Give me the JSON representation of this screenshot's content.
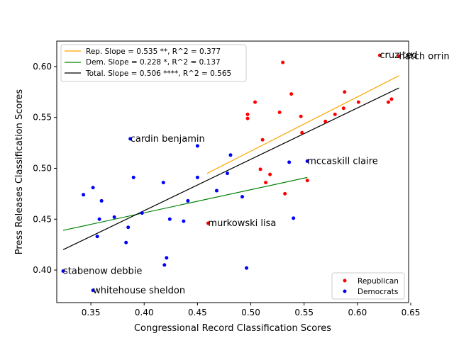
{
  "chart_data": {
    "type": "scatter",
    "xlabel": "Congressional Record Classification Scores",
    "ylabel": "Press Releases Classification Scores",
    "xlim": [
      0.318,
      0.648
    ],
    "ylim": [
      0.368,
      0.625
    ],
    "xticks": [
      {
        "value": 0.35,
        "label": "0.35"
      },
      {
        "value": 0.4,
        "label": "0.40"
      },
      {
        "value": 0.45,
        "label": "0.45"
      },
      {
        "value": 0.5,
        "label": "0.50"
      },
      {
        "value": 0.55,
        "label": "0.55"
      },
      {
        "value": 0.6,
        "label": "0.60"
      },
      {
        "value": 0.65,
        "label": "0.65"
      }
    ],
    "yticks": [
      {
        "value": 0.4,
        "label": "0.40"
      },
      {
        "value": 0.45,
        "label": "0.45"
      },
      {
        "value": 0.5,
        "label": "0.50"
      },
      {
        "value": 0.55,
        "label": "0.55"
      },
      {
        "value": 0.6,
        "label": "0.60"
      }
    ],
    "grid": false,
    "series": [
      {
        "name": "Republican",
        "color": "#ff0000",
        "points": [
          [
            0.46,
            0.446
          ],
          [
            0.497,
            0.553
          ],
          [
            0.497,
            0.549
          ],
          [
            0.504,
            0.565
          ],
          [
            0.509,
            0.499
          ],
          [
            0.511,
            0.528
          ],
          [
            0.514,
            0.486
          ],
          [
            0.518,
            0.494
          ],
          [
            0.527,
            0.555
          ],
          [
            0.53,
            0.604
          ],
          [
            0.532,
            0.475
          ],
          [
            0.538,
            0.573
          ],
          [
            0.547,
            0.551
          ],
          [
            0.548,
            0.535
          ],
          [
            0.553,
            0.488
          ],
          [
            0.57,
            0.546
          ],
          [
            0.579,
            0.553
          ],
          [
            0.587,
            0.559
          ],
          [
            0.588,
            0.575
          ],
          [
            0.601,
            0.565
          ],
          [
            0.621,
            0.611
          ],
          [
            0.629,
            0.565
          ],
          [
            0.632,
            0.568
          ],
          [
            0.639,
            0.61
          ]
        ]
      },
      {
        "name": "Democrats",
        "color": "#0000ff",
        "points": [
          [
            0.324,
            0.399
          ],
          [
            0.343,
            0.474
          ],
          [
            0.352,
            0.481
          ],
          [
            0.352,
            0.38
          ],
          [
            0.356,
            0.433
          ],
          [
            0.358,
            0.45
          ],
          [
            0.36,
            0.468
          ],
          [
            0.372,
            0.452
          ],
          [
            0.383,
            0.427
          ],
          [
            0.385,
            0.442
          ],
          [
            0.387,
            0.529
          ],
          [
            0.39,
            0.491
          ],
          [
            0.398,
            0.456
          ],
          [
            0.418,
            0.486
          ],
          [
            0.419,
            0.405
          ],
          [
            0.421,
            0.412
          ],
          [
            0.424,
            0.45
          ],
          [
            0.437,
            0.448
          ],
          [
            0.441,
            0.468
          ],
          [
            0.45,
            0.522
          ],
          [
            0.45,
            0.491
          ],
          [
            0.468,
            0.478
          ],
          [
            0.478,
            0.495
          ],
          [
            0.481,
            0.513
          ],
          [
            0.492,
            0.472
          ],
          [
            0.496,
            0.402
          ],
          [
            0.536,
            0.506
          ],
          [
            0.54,
            0.451
          ],
          [
            0.553,
            0.507
          ]
        ]
      }
    ],
    "fit_lines": [
      {
        "label": "Rep. Slope = 0.535 **, R^2 = 0.377",
        "color": "#ffa500",
        "x": [
          0.459,
          0.639
        ],
        "y": [
          0.495,
          0.591
        ]
      },
      {
        "label": "Dem. Slope = 0.228 *, R^2 = 0.137",
        "color": "#008000",
        "x": [
          0.324,
          0.553
        ],
        "y": [
          0.439,
          0.491
        ]
      },
      {
        "label": "Total. Slope = 0.506 ****, R^2 = 0.565",
        "color": "#000000",
        "x": [
          0.324,
          0.639
        ],
        "y": [
          0.42,
          0.579
        ]
      }
    ],
    "annotations": [
      {
        "text": "cruz ted",
        "x": 0.621,
        "y": 0.611
      },
      {
        "text": "hatch orrin",
        "x": 0.639,
        "y": 0.61
      },
      {
        "text": "cardin benjamin",
        "x": 0.387,
        "y": 0.529
      },
      {
        "text": "mccaskill claire",
        "x": 0.553,
        "y": 0.507
      },
      {
        "text": "murkowski lisa",
        "x": 0.46,
        "y": 0.446
      },
      {
        "text": "stabenow debbie",
        "x": 0.324,
        "y": 0.399
      },
      {
        "text": "whitehouse sheldon",
        "x": 0.352,
        "y": 0.38
      }
    ],
    "legend_lines_placement": "upper-left",
    "legend_points_placement": "lower-right"
  }
}
